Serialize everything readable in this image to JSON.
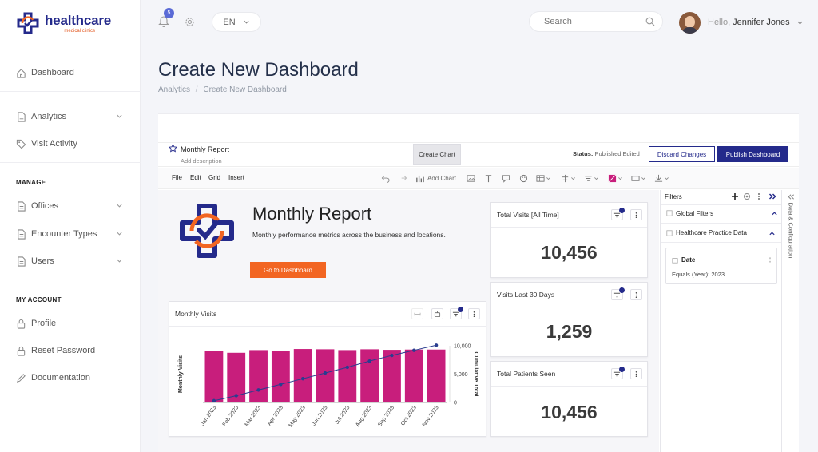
{
  "brand": {
    "name": "healthcare",
    "subtitle": "medical clinics"
  },
  "nav": {
    "dashboard": "Dashboard",
    "analytics": "Analytics",
    "visit_activity": "Visit Activity",
    "manage_heading": "MANAGE",
    "offices": "Offices",
    "encounter_types": "Encounter Types",
    "users": "Users",
    "account_heading": "MY ACCOUNT",
    "profile": "Profile",
    "reset_password": "Reset Password",
    "documentation": "Documentation"
  },
  "topbar": {
    "notification_count": "5",
    "language": "EN",
    "search_placeholder": "Search",
    "greeting": "Hello,",
    "user_name": "Jennifer Jones"
  },
  "page": {
    "title": "Create New Dashboard",
    "breadcrumb_root": "Analytics",
    "breadcrumb_sep": "/",
    "breadcrumb_current": "Create New Dashboard"
  },
  "editor": {
    "report_title": "Monthly Report",
    "add_description": "Add description",
    "create_chart": "Create Chart",
    "status_label": "Status:",
    "status_value": "Published Edited",
    "discard": "Discard Changes",
    "publish": "Publish Dashboard",
    "menus": [
      "File",
      "Edit",
      "Grid",
      "Insert"
    ],
    "add_chart": "Add Chart"
  },
  "hero": {
    "title": "Monthly Report",
    "description": "Monthly performance metrics across the business and locations.",
    "button": "Go to Dashboard"
  },
  "kpis": [
    {
      "label": "Total Visits [All Time]",
      "value": "10,456"
    },
    {
      "label": "Visits Last 30 Days",
      "value": "1,259"
    },
    {
      "label": "Total Patients Seen",
      "value": "10,456"
    }
  ],
  "filters": {
    "heading": "Filters",
    "global": "Global Filters",
    "dataset": "Healthcare Practice Data",
    "field": "Date",
    "condition": "Equals (Year): 2023",
    "side_tab": "Data & Configuration"
  },
  "colors": {
    "brand": "#242a8b",
    "accent": "#f26522",
    "bar": "#c81e7c",
    "line": "#2a3d8f"
  },
  "chart_data": {
    "type": "bar",
    "title": "Monthly Visits",
    "categories": [
      "Jan 2023",
      "Feb 2023",
      "Mar 2023",
      "Apr 2023",
      "May 2023",
      "Jun 2023",
      "Jul 2023",
      "Aug 2023",
      "Sep 2023",
      "Oct 2023",
      "Nov 2023"
    ],
    "ylabel": "Monthly Visits",
    "y2label": "Cumulative Total",
    "y2lim": [
      0,
      10000
    ],
    "y2ticks": [
      "0",
      "5,000",
      "10,000"
    ],
    "grid": false,
    "series": [
      {
        "name": "Monthly Visits",
        "type": "bar",
        "values": [
          950,
          920,
          970,
          960,
          990,
          985,
          970,
          985,
          975,
          980,
          980
        ]
      },
      {
        "name": "Cumulative Total",
        "type": "line",
        "axis": "right",
        "values": [
          300,
          1200,
          2200,
          3200,
          4200,
          5200,
          6200,
          7300,
          8300,
          9200,
          10100
        ]
      }
    ]
  }
}
